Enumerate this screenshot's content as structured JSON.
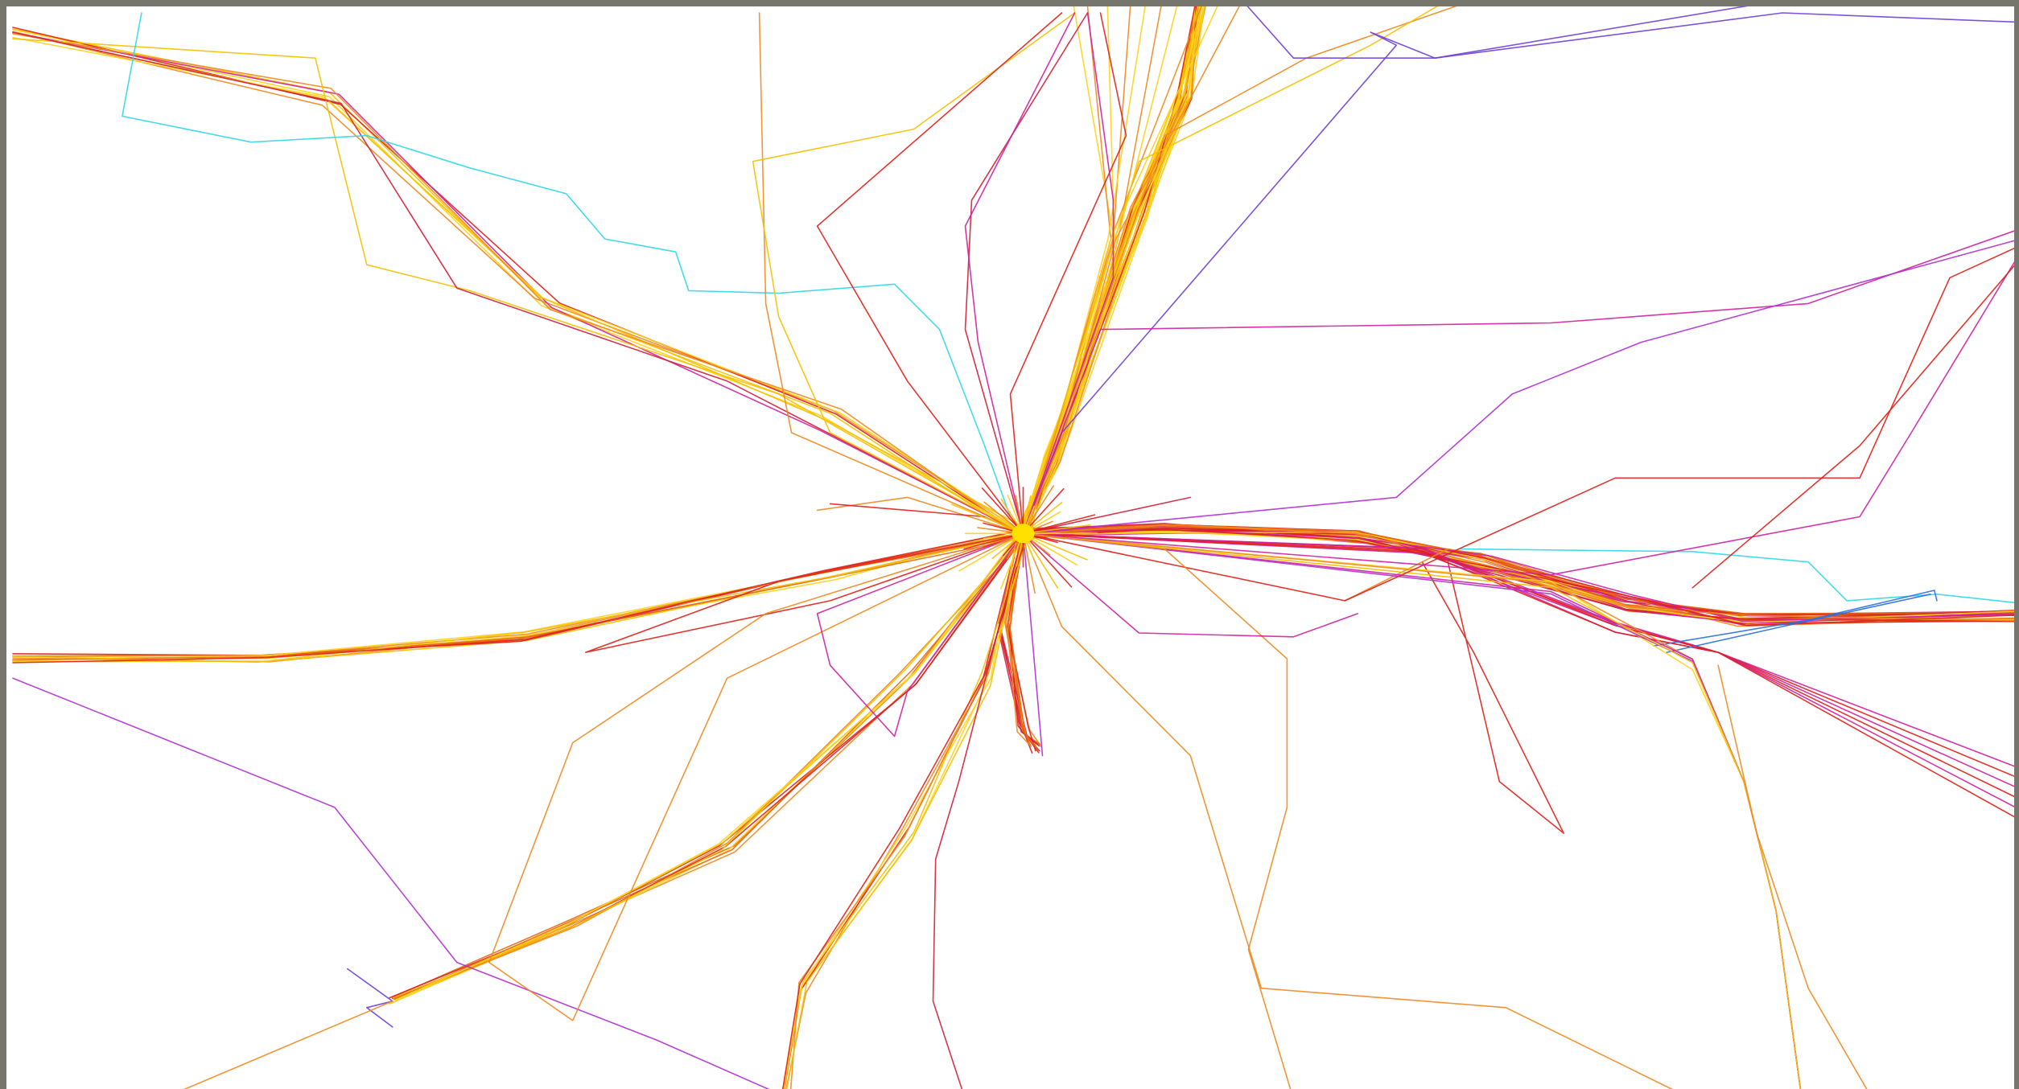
{
  "map": {
    "kind": "flight-track-density",
    "palette": {
      "yellow": "#ffd21a",
      "gold": "#f5c000",
      "orange": "#f08a20",
      "darkorange": "#e86a10",
      "red": "#e0201a",
      "crimson": "#d0203a",
      "magenta": "#d020a0",
      "purple": "#b030d0",
      "violet": "#7040d8",
      "blue": "#2a70e0",
      "cyan": "#30d8e8",
      "green": "#30c070",
      "hub": "#ffe000"
    }
  }
}
